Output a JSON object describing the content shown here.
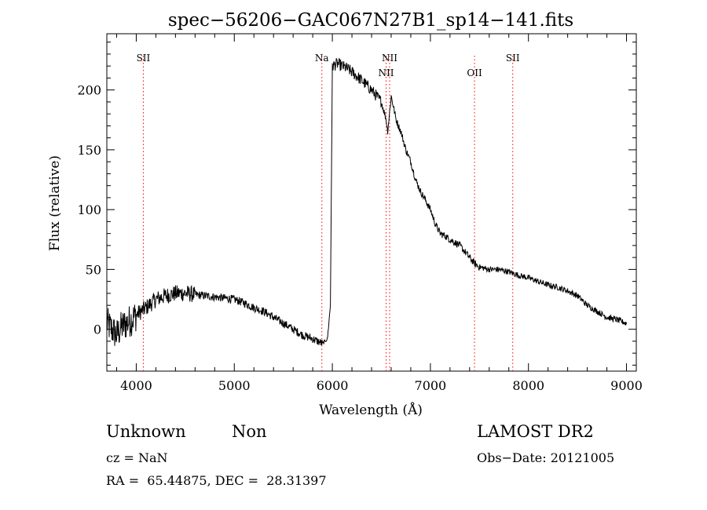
{
  "chart_data": {
    "type": "line",
    "title": "spec−56206−GAC067N27B1_sp14−141.fits",
    "xlabel": "Wavelength (Å)",
    "ylabel": "Flux (relative)",
    "xlim": [
      3700,
      9100
    ],
    "ylim": [
      -35,
      247
    ],
    "xticks": [
      4000,
      5000,
      6000,
      7000,
      8000,
      9000
    ],
    "yticks": [
      0,
      50,
      100,
      150,
      200
    ],
    "grid": false,
    "series": [
      {
        "x": [
          3700,
          3750,
          3800,
          3850,
          3900,
          3950,
          4000,
          4100,
          4200,
          4300,
          4400,
          4500,
          4600,
          4700,
          4800,
          4900,
          5000,
          5100,
          5200,
          5300,
          5400,
          5500,
          5600,
          5700,
          5800,
          5850,
          5900,
          5950,
          5980,
          6000,
          6050,
          6100,
          6150,
          6200,
          6300,
          6400,
          6500,
          6550,
          6563,
          6580,
          6600,
          6650,
          6700,
          6750,
          6800,
          6850,
          6900,
          6950,
          7000,
          7050,
          7100,
          7150,
          7200,
          7300,
          7400,
          7450,
          7500,
          7600,
          7700,
          7800,
          7900,
          8000,
          8100,
          8200,
          8300,
          8400,
          8500,
          8600,
          8700,
          8800,
          8900,
          9000
        ],
        "y": [
          5,
          0,
          -5,
          2,
          5,
          8,
          12,
          18,
          25,
          28,
          30,
          30,
          29,
          28,
          27,
          26,
          25,
          22,
          18,
          15,
          10,
          5,
          0,
          -5,
          -8,
          -10,
          -12,
          -8,
          20,
          220,
          222,
          220,
          218,
          215,
          208,
          200,
          190,
          175,
          165,
          178,
          195,
          175,
          165,
          150,
          140,
          125,
          115,
          108,
          100,
          88,
          80,
          78,
          75,
          70,
          60,
          55,
          52,
          50,
          50,
          48,
          45,
          43,
          40,
          37,
          35,
          32,
          28,
          20,
          15,
          10,
          8,
          5
        ]
      }
    ],
    "lines": [
      {
        "label": "SII",
        "x": 4072,
        "row": "upper"
      },
      {
        "label": "Na",
        "x": 5893,
        "row": "upper"
      },
      {
        "label": "NII",
        "x": 6548,
        "row": "lower"
      },
      {
        "label": "NII",
        "x": 6584,
        "row": "upper"
      },
      {
        "label": "OII",
        "x": 7450,
        "row": "lower"
      },
      {
        "label": "SII",
        "x": 7840,
        "row": "upper"
      }
    ],
    "line_color": "#ff0000",
    "trace_color": "#000000"
  },
  "info": {
    "object_class": "Unknown",
    "subclass": "Non",
    "survey": "LAMOST DR2",
    "redshift": "cz = NaN",
    "obs_date": "Obs−Date: 20121005",
    "coords": "RA =  65.44875, DEC =  28.31397"
  }
}
